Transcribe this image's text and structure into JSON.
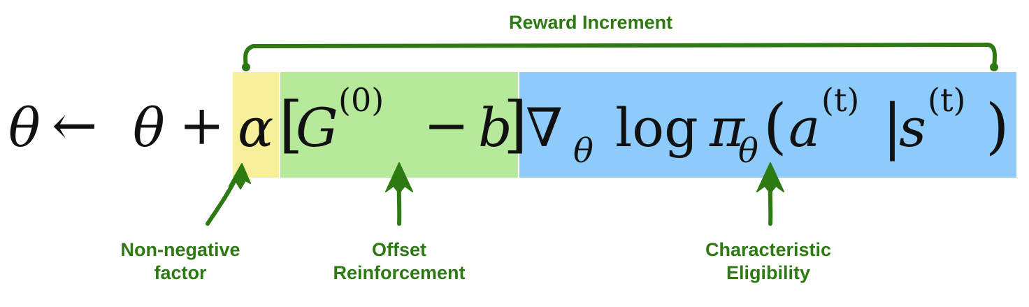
{
  "equation": {
    "theta1": "θ",
    "arrow": "←",
    "theta2": "θ",
    "plus": "+",
    "alpha": "α",
    "lbracket": "[",
    "G": "G",
    "G_sup": "(0)",
    "minus": "−",
    "b": "b",
    "rbracket": "]",
    "nabla": "∇",
    "nabla_sub": "θ",
    "log": "log",
    "pi": "π",
    "pi_sub": "θ",
    "lparen": "(",
    "a": "a",
    "a_sup": "(t)",
    "bar": "|",
    "s": "s",
    "s_sup": "(t)",
    "rparen": ")"
  },
  "labels": {
    "reward_increment": "Reward Increment",
    "non_negative_line1": "Non-negative",
    "non_negative_line2": "factor",
    "offset_line1": "Offset",
    "offset_line2": "Reinforcement",
    "characteristic_line1": "Characteristic",
    "characteristic_line2": "Eligibility"
  },
  "colors": {
    "alpha_highlight": "#f7ef9a",
    "offset_highlight": "#b7e99b",
    "eligibility_highlight": "#8dcbfb",
    "annotation_green": "#2e7a12"
  }
}
